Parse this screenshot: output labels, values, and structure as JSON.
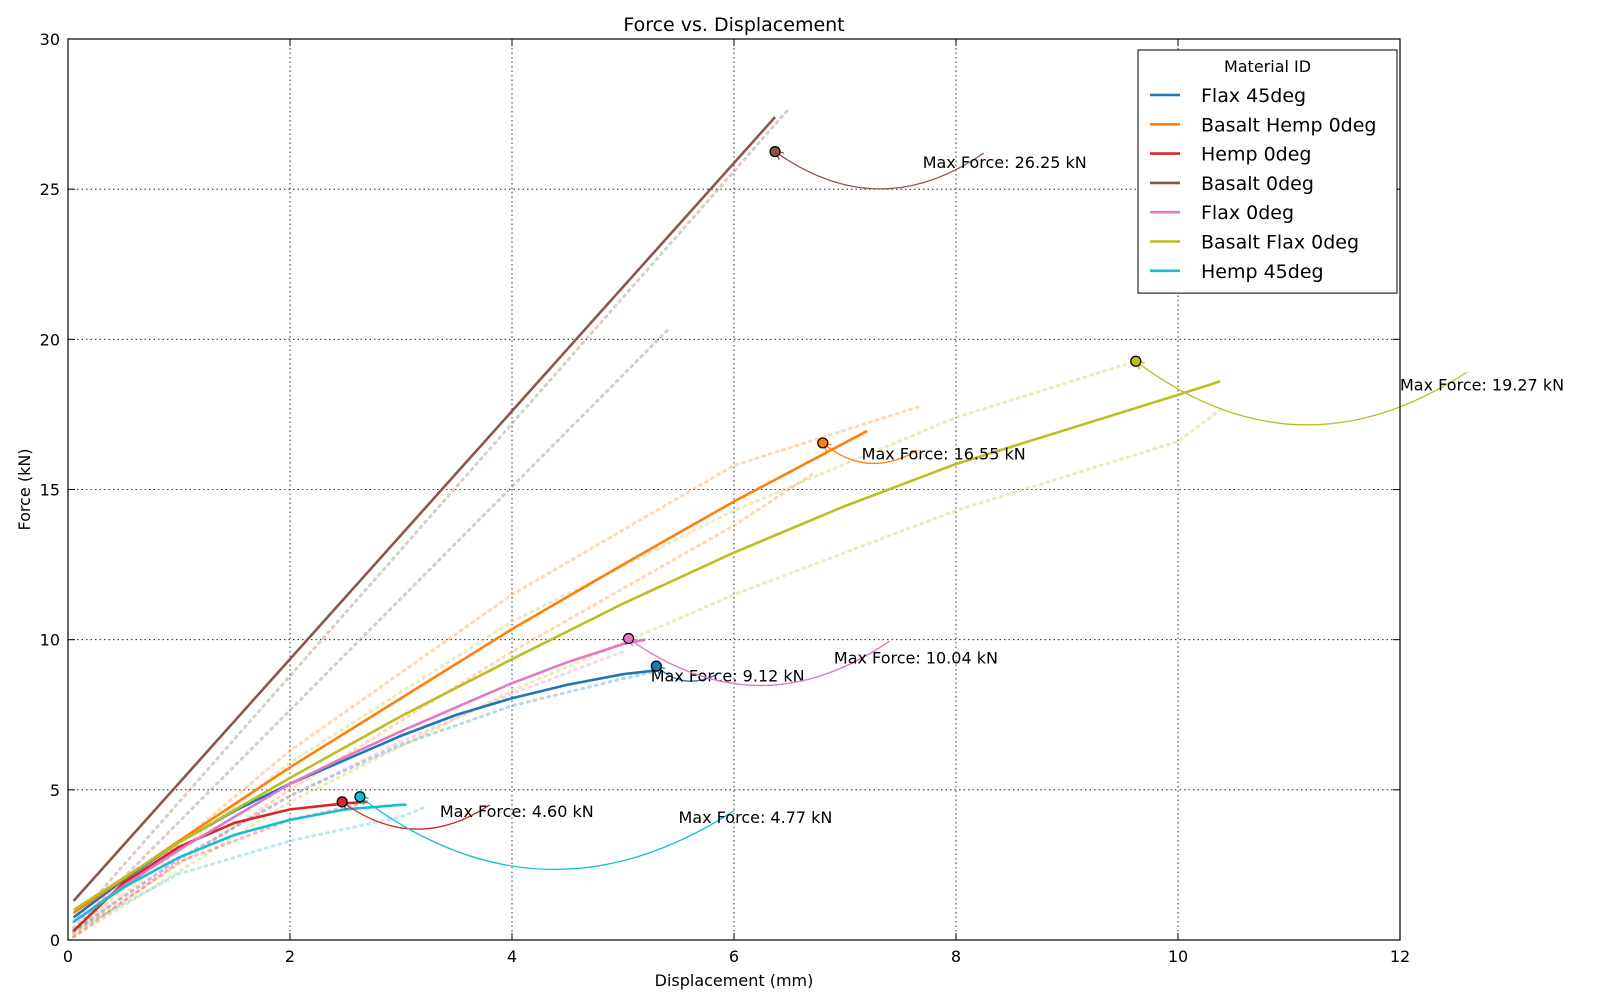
{
  "chart_data": {
    "type": "line",
    "title": "Force vs. Displacement",
    "xlabel": "Displacement (mm)",
    "ylabel": "Force (kN)",
    "xlim": [
      0,
      12
    ],
    "ylim": [
      0,
      30
    ],
    "xticks": [
      "0",
      "2",
      "4",
      "6",
      "8",
      "10",
      "12"
    ],
    "yticks": [
      "0",
      "5",
      "10",
      "15",
      "20",
      "25",
      "30"
    ],
    "grid": true,
    "legend": {
      "title": "Material ID",
      "placement": "top-right"
    },
    "series": [
      {
        "name": "Flax 45deg",
        "color": "#1f77b4",
        "x": [
          0.05,
          0.5,
          1.0,
          1.5,
          2.0,
          2.5,
          3.0,
          3.5,
          4.0,
          4.5,
          5.0,
          5.35
        ],
        "y": [
          0.75,
          2.0,
          3.25,
          4.3,
          5.2,
          6.0,
          6.8,
          7.5,
          8.05,
          8.5,
          8.85,
          9.0
        ],
        "max": {
          "x": 5.3,
          "y": 9.12,
          "label": "Max Force: 9.12 kN"
        }
      },
      {
        "name": "Basalt Hemp 0deg",
        "color": "#ff7f0e",
        "x": [
          0.05,
          1.0,
          2.0,
          3.0,
          4.0,
          5.0,
          6.0,
          7.2
        ],
        "y": [
          0.9,
          3.3,
          5.75,
          8.05,
          10.35,
          12.5,
          14.6,
          16.95
        ],
        "max": {
          "x": 6.8,
          "y": 16.55,
          "label": "Max Force: 16.55 kN"
        }
      },
      {
        "name": "Hemp 0deg",
        "color": "#d62728",
        "x": [
          0.05,
          0.5,
          1.0,
          1.5,
          2.0,
          2.5,
          2.7
        ],
        "y": [
          0.3,
          1.9,
          3.1,
          3.9,
          4.35,
          4.55,
          4.6
        ],
        "max": {
          "x": 2.47,
          "y": 4.6,
          "label": "Max Force: 4.60 kN"
        }
      },
      {
        "name": "Basalt 0deg",
        "color": "#8c564b",
        "x": [
          0.05,
          6.37
        ],
        "y": [
          1.3,
          27.4
        ],
        "max": {
          "x": 6.37,
          "y": 26.25,
          "label": "Max Force: 26.25 kN"
        }
      },
      {
        "name": "Flax 0deg",
        "color": "#e377c2",
        "x": [
          0.05,
          0.5,
          1.0,
          1.5,
          2.0,
          2.5,
          3.0,
          3.5,
          4.0,
          4.5,
          5.0,
          5.2
        ],
        "y": [
          0.6,
          1.8,
          3.0,
          4.1,
          5.2,
          6.1,
          6.95,
          7.75,
          8.55,
          9.25,
          9.85,
          10.0
        ],
        "max": {
          "x": 5.05,
          "y": 10.04,
          "label": "Max Force: 10.04 kN"
        }
      },
      {
        "name": "Basalt Flax 0deg",
        "color": "#bcbd22",
        "x": [
          0.05,
          1.0,
          2.0,
          3.0,
          4.0,
          5.0,
          6.0,
          7.0,
          8.0,
          9.0,
          10.0,
          10.38
        ],
        "y": [
          1.0,
          3.25,
          5.4,
          7.45,
          9.35,
          11.2,
          12.9,
          14.45,
          15.85,
          17.0,
          18.15,
          18.6
        ],
        "max": {
          "x": 9.62,
          "y": 19.27,
          "label": "Max Force: 19.27 kN"
        }
      },
      {
        "name": "Hemp 45deg",
        "color": "#17becf",
        "x": [
          0.05,
          0.5,
          1.0,
          1.5,
          2.0,
          2.5,
          3.0,
          3.05
        ],
        "y": [
          0.6,
          1.75,
          2.75,
          3.5,
          4.0,
          4.35,
          4.5,
          4.5
        ],
        "max": {
          "x": 2.63,
          "y": 4.77,
          "label": "Max Force: 4.77 kN"
        }
      }
    ],
    "raw_runs": [
      {
        "color": "#8c564b",
        "x": [
          0.05,
          6.5
        ],
        "y": [
          0.6,
          27.7
        ]
      },
      {
        "color": "#8c564b",
        "x": [
          0.05,
          5.4
        ],
        "y": [
          0.4,
          20.3
        ]
      },
      {
        "color": "#bcbd22",
        "x": [
          0.05,
          2.0,
          4.0,
          6.0,
          8.0,
          9.62
        ],
        "y": [
          0.2,
          5.9,
          10.6,
          14.3,
          17.4,
          19.27
        ]
      },
      {
        "color": "#bcbd22",
        "x": [
          0.05,
          2.0,
          4.0,
          6.0,
          8.0,
          10.0,
          10.4
        ],
        "y": [
          0.1,
          4.6,
          8.3,
          11.5,
          14.3,
          16.6,
          17.7
        ]
      },
      {
        "color": "#ff7f0e",
        "x": [
          0.05,
          2.0,
          4.0,
          6.0,
          7.7
        ],
        "y": [
          0.3,
          6.3,
          11.5,
          15.8,
          17.8
        ]
      },
      {
        "color": "#ff7f0e",
        "x": [
          0.05,
          2.0,
          4.0,
          6.0,
          6.7
        ],
        "y": [
          0.2,
          5.0,
          9.6,
          13.8,
          15.5
        ]
      },
      {
        "color": "#1f77b4",
        "x": [
          0.05,
          1.0,
          2.0,
          3.0,
          4.0,
          5.0,
          5.3
        ],
        "y": [
          0.3,
          2.7,
          4.8,
          6.5,
          7.8,
          8.7,
          8.95
        ]
      },
      {
        "color": "#e377c2",
        "x": [
          0.05,
          1.0,
          2.0,
          3.0,
          4.0,
          5.0
        ],
        "y": [
          0.3,
          2.7,
          4.8,
          6.6,
          8.2,
          9.6
        ]
      },
      {
        "color": "#17becf",
        "x": [
          0.05,
          1.0,
          2.0,
          3.0,
          3.2
        ],
        "y": [
          0.3,
          2.2,
          3.3,
          4.1,
          4.4
        ]
      },
      {
        "color": "#d62728",
        "x": [
          0.05,
          1.0,
          2.0,
          2.6
        ],
        "y": [
          0.1,
          2.6,
          4.0,
          4.5
        ]
      }
    ]
  }
}
